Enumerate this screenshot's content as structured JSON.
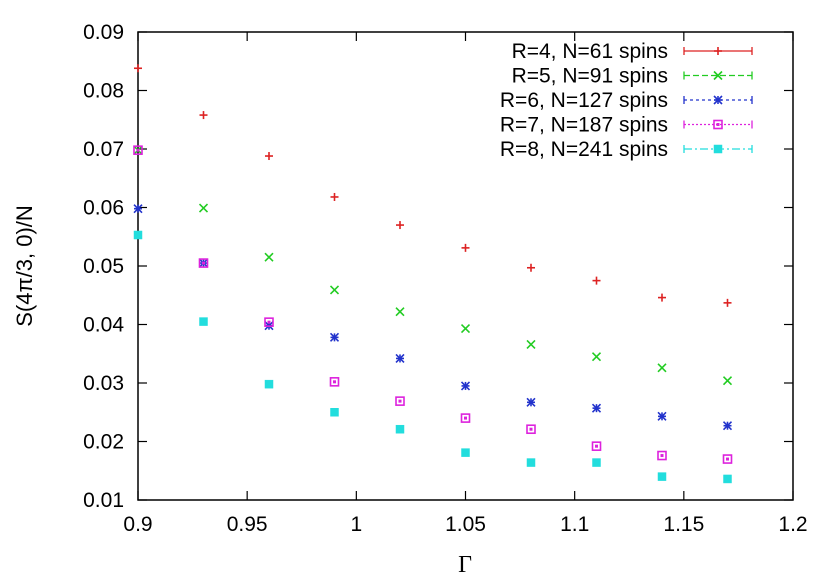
{
  "chart_data": {
    "type": "scatter",
    "xlabel": "Γ",
    "ylabel": "S(4π/3, 0)/N",
    "xlim": [
      0.9,
      1.2
    ],
    "ylim": [
      0.01,
      0.09
    ],
    "xticks": [
      0.9,
      0.95,
      1.0,
      1.05,
      1.1,
      1.15,
      1.2
    ],
    "xtick_labels": [
      "0.9",
      "0.95",
      "1",
      "1.05",
      "1.1",
      "1.15",
      "1.2"
    ],
    "yticks": [
      0.01,
      0.02,
      0.03,
      0.04,
      0.05,
      0.06,
      0.07,
      0.08,
      0.09
    ],
    "ytick_labels": [
      "0.01",
      "0.02",
      "0.03",
      "0.04",
      "0.05",
      "0.06",
      "0.07",
      "0.08",
      "0.09"
    ],
    "grid": false,
    "legend_position": "top-right",
    "x": [
      0.9,
      0.93,
      0.96,
      0.99,
      1.02,
      1.05,
      1.08,
      1.11,
      1.14,
      1.17
    ],
    "series": [
      {
        "name": "R=4, N=61 spins",
        "color": "#dd2222",
        "marker": "plus",
        "values": [
          0.0838,
          0.0758,
          0.0688,
          0.0618,
          0.057,
          0.0531,
          0.0497,
          0.0475,
          0.0446,
          0.0437
        ]
      },
      {
        "name": "R=5, N=91 spins",
        "color": "#22cc22",
        "marker": "cross",
        "values": [
          0.0698,
          0.0599,
          0.0515,
          0.0459,
          0.0422,
          0.0393,
          0.0366,
          0.0345,
          0.0326,
          0.0304
        ]
      },
      {
        "name": "R=6, N=127 spins",
        "color": "#2233cc",
        "marker": "star",
        "values": [
          0.0598,
          0.0505,
          0.0398,
          0.0378,
          0.0342,
          0.0295,
          0.0267,
          0.0257,
          0.0243,
          0.0227
        ]
      },
      {
        "name": "R=7, N=187 spins",
        "color": "#dd22dd",
        "marker": "open-square",
        "values": [
          0.0698,
          0.0505,
          0.0404,
          0.0302,
          0.0269,
          0.024,
          0.0221,
          0.0192,
          0.0176,
          0.017
        ]
      },
      {
        "name": "R=8, N=241 spins",
        "color": "#22dddd",
        "marker": "filled-square",
        "values": [
          0.0553,
          0.0405,
          0.0298,
          0.025,
          0.0221,
          0.0181,
          0.0164,
          0.0164,
          0.014,
          0.0136
        ]
      }
    ]
  }
}
